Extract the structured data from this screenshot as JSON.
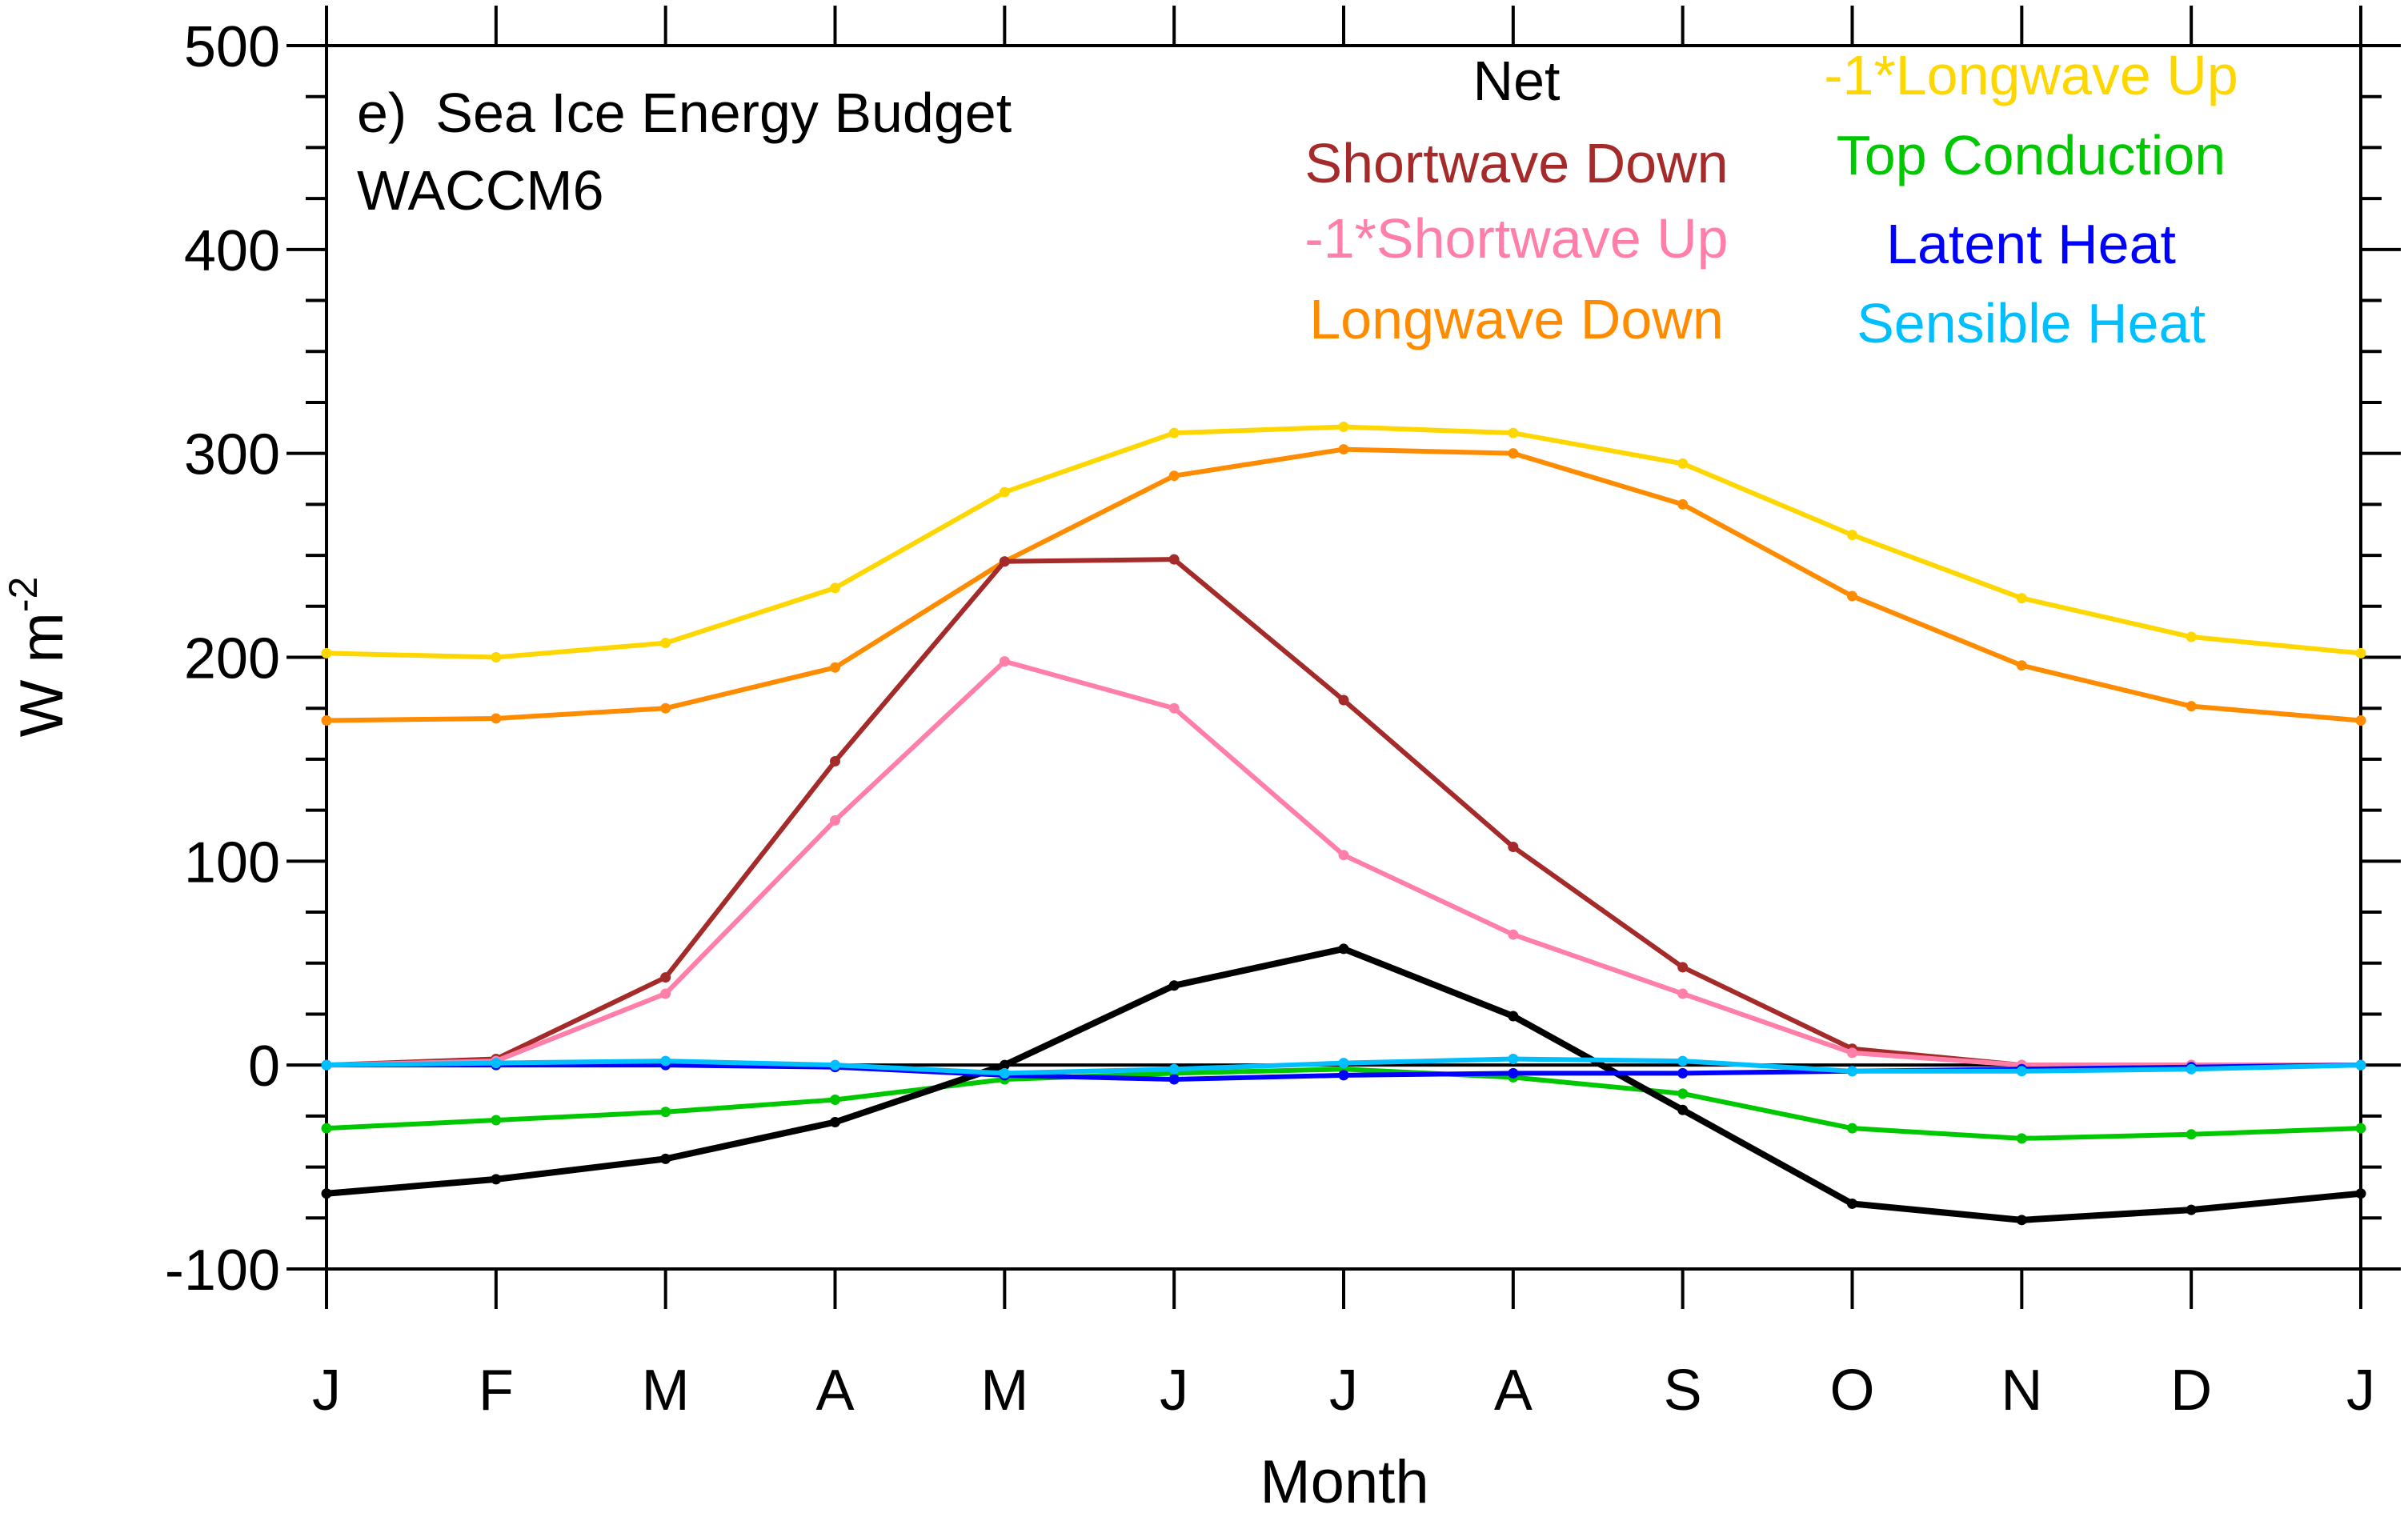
{
  "chart_data": {
    "type": "line",
    "panel_label": "e)",
    "title": "Sea Ice Energy Budget",
    "subtitle": "WACCM6",
    "xlabel": "Month",
    "ylabel": "W m",
    "ylabel_exponent": "-2",
    "ylim": [
      -100,
      500
    ],
    "yticks": [
      -100,
      0,
      100,
      200,
      300,
      400,
      500
    ],
    "x": [
      "J",
      "F",
      "M",
      "A",
      "M",
      "J",
      "J",
      "A",
      "S",
      "O",
      "N",
      "D",
      "J"
    ],
    "grid": false,
    "legend_placement": "top-right",
    "series": [
      {
        "name": "Net",
        "color": "#000000",
        "values": [
          -63,
          -56,
          -46,
          -28,
          0,
          39,
          57,
          24,
          -22,
          -68,
          -76,
          -71,
          -63
        ]
      },
      {
        "name": "Shortwave Down",
        "color": "#a52a2a",
        "values": [
          0,
          3,
          43,
          149,
          247,
          248,
          179,
          107,
          48,
          8,
          0,
          0,
          0
        ]
      },
      {
        "name": "-1*Shortwave Up",
        "color": "#ff7fa8",
        "values": [
          0,
          2,
          35,
          120,
          198,
          175,
          103,
          64,
          35,
          6,
          0,
          0,
          0
        ]
      },
      {
        "name": "Longwave Down",
        "color": "#ff8c00",
        "values": [
          169,
          170,
          175,
          195,
          247,
          289,
          302,
          300,
          275,
          230,
          196,
          176,
          169
        ]
      },
      {
        "name": "-1*Longwave Up",
        "color": "#ffd700",
        "values": [
          202,
          200,
          207,
          234,
          281,
          310,
          313,
          310,
          295,
          260,
          229,
          210,
          202
        ]
      },
      {
        "name": "Top Conduction",
        "color": "#00c800",
        "values": [
          -31,
          -27,
          -23,
          -17,
          -7,
          -4,
          -2,
          -6,
          -14,
          -31,
          -36,
          -34,
          -31
        ]
      },
      {
        "name": "Latent Heat",
        "color": "#0000ff",
        "values": [
          0,
          0,
          0,
          -1,
          -5,
          -7,
          -5,
          -4,
          -4,
          -3,
          -2,
          -1,
          0
        ]
      },
      {
        "name": "Sensible Heat",
        "color": "#00bfff",
        "values": [
          0,
          1,
          2,
          0,
          -4,
          -2,
          1,
          3,
          2,
          -3,
          -3,
          -2,
          0
        ]
      }
    ]
  }
}
